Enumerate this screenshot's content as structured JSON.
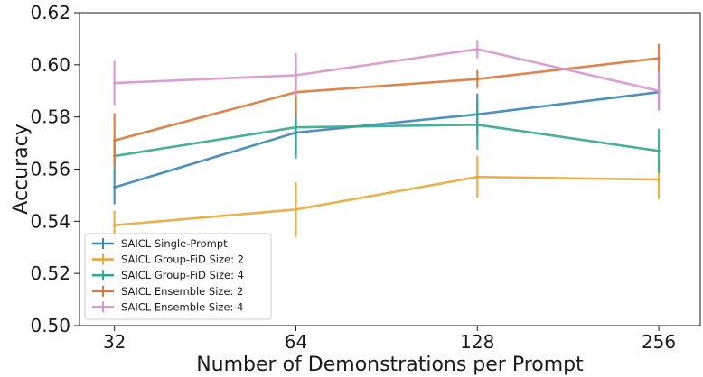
{
  "chart_data": {
    "type": "line",
    "title": "",
    "xlabel": "Number of Demonstrations per Prompt",
    "ylabel": "Accuracy",
    "x": [
      32,
      64,
      128,
      256
    ],
    "x_tick_labels": [
      "32",
      "64",
      "128",
      "256"
    ],
    "x_scale": "log2",
    "xlim": [
      28,
      300
    ],
    "ylim": [
      0.5,
      0.62
    ],
    "y_ticks": [
      0.5,
      0.52,
      0.54,
      0.56,
      0.58,
      0.6,
      0.62
    ],
    "y_tick_labels": [
      "0.50",
      "0.52",
      "0.54",
      "0.56",
      "0.58",
      "0.60",
      "0.62"
    ],
    "grid": false,
    "legend_position": "lower-left",
    "series": [
      {
        "name": "SAICL Single-Prompt",
        "color": "#3a86b5",
        "values": [
          0.553,
          0.574,
          0.581,
          0.5895
        ],
        "errors": [
          0.0065,
          0.0085,
          0.008,
          0.007
        ]
      },
      {
        "name": "SAICL Group-FiD Size: 2",
        "color": "#e8a838",
        "values": [
          0.5385,
          0.5445,
          0.557,
          0.556
        ],
        "errors": [
          0.0055,
          0.0105,
          0.008,
          0.0075
        ]
      },
      {
        "name": "SAICL Group-FiD Size: 4",
        "color": "#33a88c",
        "values": [
          0.565,
          0.576,
          0.577,
          0.567
        ],
        "errors": [
          0.0065,
          0.012,
          0.0095,
          0.0085
        ]
      },
      {
        "name": "SAICL Ensemble Size: 2",
        "color": "#d9783a",
        "values": [
          0.571,
          0.5895,
          0.5945,
          0.6025
        ],
        "errors": [
          0.0105,
          0.0095,
          0.0035,
          0.0055
        ]
      },
      {
        "name": "SAICL Ensemble Size: 4",
        "color": "#d796cc",
        "values": [
          0.593,
          0.596,
          0.606,
          0.59
        ],
        "errors": [
          0.0085,
          0.0085,
          0.0035,
          0.0075
        ]
      }
    ]
  }
}
